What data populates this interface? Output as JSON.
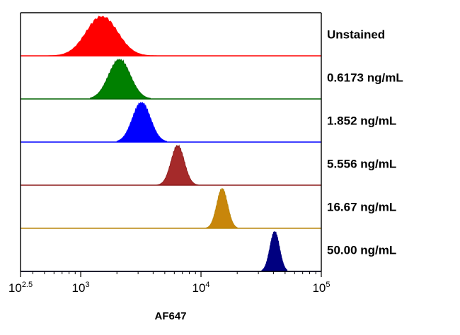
{
  "chart_data": {
    "type": "area",
    "subtype": "stacked-histogram-overlay",
    "xlabel": "AF647",
    "x_scale": "log",
    "xlim": [
      316,
      100000
    ],
    "x_ticks": [
      {
        "base": "10",
        "exp": "2.5",
        "value": 316
      },
      {
        "base": "10",
        "exp": "3",
        "value": 1000
      },
      {
        "base": "10",
        "exp": "4",
        "value": 10000
      },
      {
        "base": "10",
        "exp": "5",
        "value": 100000
      }
    ],
    "series": [
      {
        "name": "Unstained",
        "color": "#ff0000",
        "outline": "#ff0000",
        "peak_x": 1500,
        "log_sd": 0.13,
        "x_range": [
          500,
          5000
        ]
      },
      {
        "name": "0.6173 ng/mL",
        "color": "#008000",
        "outline": "#006400",
        "peak_x": 2100,
        "log_sd": 0.09,
        "x_range": [
          1200,
          3800
        ]
      },
      {
        "name": "1.852 ng/mL",
        "color": "#0000ff",
        "outline": "#0000ff",
        "peak_x": 3200,
        "log_sd": 0.075,
        "x_range": [
          2000,
          5200
        ]
      },
      {
        "name": "5.556 ng/mL",
        "color": "#a52a2a",
        "outline": "#8b1a1a",
        "peak_x": 6400,
        "log_sd": 0.055,
        "x_range": [
          4300,
          9500
        ]
      },
      {
        "name": "16.67 ng/mL",
        "color": "#c8860b",
        "outline": "#b8860b",
        "peak_x": 15000,
        "log_sd": 0.045,
        "x_range": [
          11000,
          20000
        ]
      },
      {
        "name": "50.00 ng/mL",
        "color": "#000080",
        "outline": "#000080",
        "peak_x": 41000,
        "log_sd": 0.04,
        "x_range": [
          32000,
          52000
        ]
      }
    ]
  }
}
